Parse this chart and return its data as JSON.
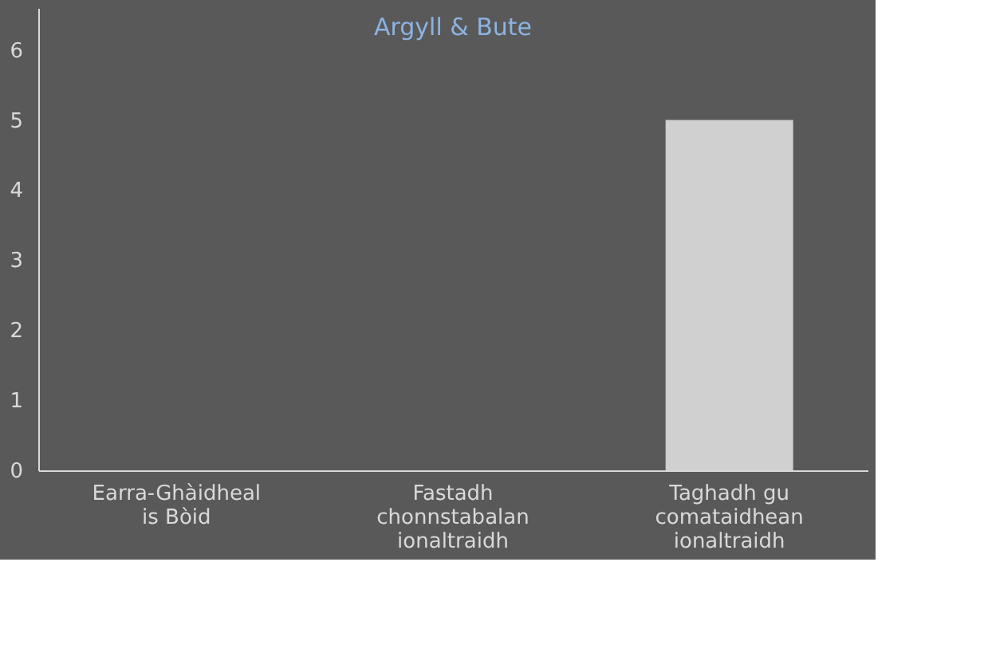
{
  "chart_data": {
    "type": "bar",
    "title": "Argyll & Bute",
    "categories": [
      "Earra-Ghàidheal is Bòid",
      "Fastadh chonnstabalan ionaltraidh",
      "Taghadh gu comataidhean ionaltraidh"
    ],
    "values": [
      0,
      0,
      5
    ],
    "color": "#d0d0d0",
    "ylim": [
      0,
      6.6
    ],
    "yticks": [
      0,
      1,
      2,
      3,
      4,
      5,
      6
    ],
    "grid": false
  }
}
